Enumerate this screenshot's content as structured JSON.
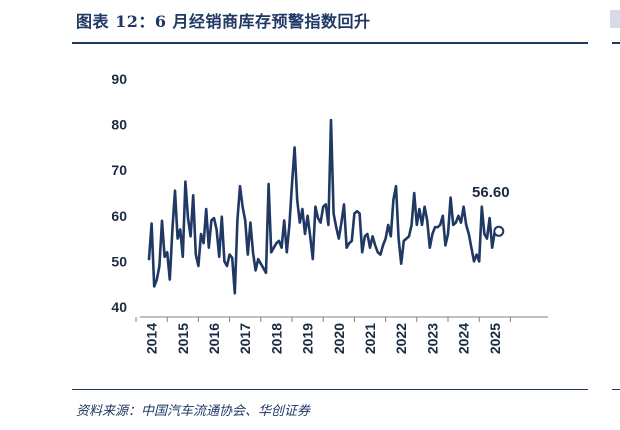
{
  "header": {
    "title": "图表 12：6 月经销商库存预警指数回升"
  },
  "footer": {
    "source": "资料来源：中国汽车流通协会、华创证券"
  },
  "colors": {
    "line": "#1f3864",
    "rule": "#1f3864",
    "text": "#1b2b40"
  },
  "chart_data": {
    "type": "line",
    "title": "",
    "xlabel": "",
    "ylabel": "",
    "ylim": [
      40,
      90
    ],
    "yticks": [
      40,
      50,
      60,
      70,
      80,
      90
    ],
    "xticks": [
      "2014",
      "2015",
      "2016",
      "2017",
      "2018",
      "2019",
      "2020",
      "2021",
      "2022",
      "2023",
      "2024",
      "2025"
    ],
    "x_start": "2014-01",
    "grid": false,
    "legend": "none",
    "end_label": "56.60",
    "series": [
      {
        "values": [
          50.5,
          58.3,
          44.5,
          46.0,
          49.0,
          58.9,
          51.0,
          52.0,
          46.0,
          57.0,
          65.5,
          55.0,
          57.0,
          51.0,
          67.5,
          59.5,
          55.5,
          64.5,
          51.5,
          49.0,
          56.0,
          54.0,
          61.5,
          53.0,
          59.0,
          59.5,
          57.0,
          51.0,
          59.8,
          50.0,
          49.0,
          51.5,
          50.8,
          43.0,
          59.0,
          66.5,
          62.0,
          59.0,
          51.5,
          58.5,
          52.0,
          48.0,
          50.5,
          49.5,
          48.5,
          47.5,
          67.0,
          52.0,
          53.0,
          54.0,
          54.5,
          53.0,
          59.0,
          52.0,
          58.0,
          67.0,
          75.0,
          63.5,
          58.5,
          61.5,
          56.0,
          60.0,
          55.5,
          50.5,
          62.0,
          59.5,
          58.5,
          62.0,
          62.5,
          58.0,
          81.0,
          60.5,
          57.5,
          55.0,
          58.5,
          62.5,
          53.0,
          54.0,
          54.5,
          60.5,
          61.0,
          60.5,
          52.0,
          55.5,
          56.0,
          53.0,
          55.5,
          53.5,
          52.0,
          51.5,
          53.5,
          55.0,
          58.0,
          55.5,
          63.5,
          66.5,
          55.0,
          49.5,
          54.5,
          55.0,
          55.5,
          58.0,
          65.0,
          58.0,
          61.5,
          58.0,
          62.0,
          59.0,
          53.0,
          56.0,
          57.5,
          57.5,
          58.0,
          60.0,
          53.5,
          56.0,
          64.0,
          58.0,
          58.5,
          60.0,
          58.5,
          62.0,
          58.0,
          56.0,
          53.0,
          50.0,
          51.5,
          50.0,
          62.0,
          56.0,
          55.0,
          59.5,
          53.0,
          56.6
        ]
      }
    ]
  }
}
